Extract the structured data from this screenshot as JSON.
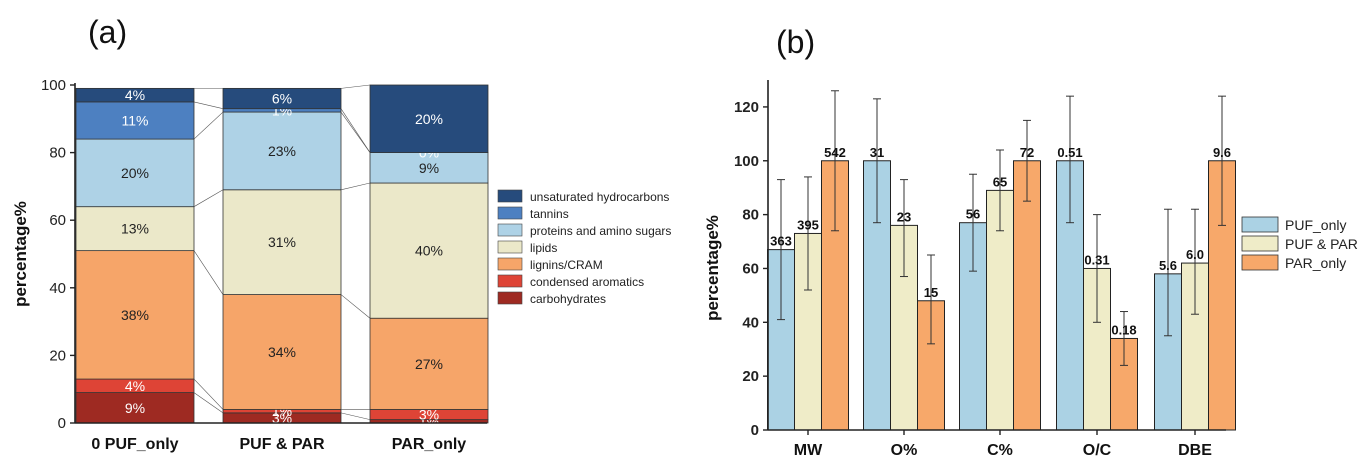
{
  "panel_a_label": "(a)",
  "panel_b_label": "(b)",
  "chart_data": [
    {
      "type": "bar",
      "stacked": true,
      "ylabel": "percentage%",
      "ylim": [
        0,
        100
      ],
      "yticks": [
        "0",
        "20",
        "40",
        "60",
        "80",
        "100"
      ],
      "categories": [
        "0 PUF_only",
        "PUF & PAR",
        "PAR_only"
      ],
      "series": [
        {
          "name": "carbohydrates",
          "color": "#9e2a22",
          "values": [
            9,
            3,
            1
          ],
          "labels": [
            "9%",
            "3%",
            "1%"
          ]
        },
        {
          "name": "condensed aromatics",
          "color": "#de4436",
          "values": [
            4,
            1,
            3
          ],
          "labels": [
            "4%",
            "1%",
            "3%"
          ]
        },
        {
          "name": "lignins/CRAM",
          "color": "#f6a569",
          "values": [
            38,
            34,
            27
          ],
          "labels": [
            "38%",
            "34%",
            "27%"
          ]
        },
        {
          "name": "lipids",
          "color": "#ebe8c9",
          "values": [
            13,
            31,
            40
          ],
          "labels": [
            "13%",
            "31%",
            "40%"
          ]
        },
        {
          "name": "proteins and amino sugars",
          "color": "#aed2e6",
          "values": [
            20,
            23,
            9
          ],
          "labels": [
            "20%",
            "23%",
            "9%"
          ]
        },
        {
          "name": "tannins",
          "color": "#4d80c1",
          "values": [
            11,
            1,
            0
          ],
          "labels": [
            "11%",
            "1%",
            "0%"
          ]
        },
        {
          "name": "unsaturated hydrocarbons",
          "color": "#264b7c",
          "values": [
            4,
            6,
            20
          ],
          "labels": [
            "4%",
            "6%",
            "20%"
          ]
        }
      ],
      "legend_order": [
        "unsaturated hydrocarbons",
        "tannins",
        "proteins and amino sugars",
        "lipids",
        "lignins/CRAM",
        "condensed aromatics",
        "carbohydrates"
      ]
    },
    {
      "type": "bar",
      "grouped": true,
      "ylabel": "percentage%",
      "ylim": [
        0,
        130
      ],
      "yticks": [
        "0",
        "20",
        "40",
        "60",
        "80",
        "100",
        "120"
      ],
      "categories": [
        "MW",
        "O%",
        "C%",
        "O/C",
        "DBE"
      ],
      "series": [
        {
          "name": "PUF_only",
          "color": "#abd2e4",
          "values": [
            67,
            100,
            77,
            100,
            58
          ],
          "err_low": [
            41,
            77,
            59,
            77,
            35
          ],
          "err_high": [
            93,
            123,
            95,
            124,
            82
          ],
          "labels": [
            "363",
            "31",
            "56",
            "0.51",
            "5.6"
          ]
        },
        {
          "name": "PUF & PAR",
          "color": "#efecc8",
          "values": [
            73,
            76,
            89,
            60,
            62
          ],
          "err_low": [
            52,
            57,
            74,
            40,
            43
          ],
          "err_high": [
            94,
            93,
            104,
            80,
            82
          ],
          "labels": [
            "395",
            "23",
            "65",
            "0.31",
            "6.0"
          ]
        },
        {
          "name": "PAR_only",
          "color": "#f7a86a",
          "values": [
            100,
            48,
            100,
            34,
            100
          ],
          "err_low": [
            74,
            32,
            85,
            24,
            76
          ],
          "err_high": [
            126,
            65,
            115,
            44,
            124
          ],
          "labels": [
            "542",
            "15",
            "72",
            "0.18",
            "9.6"
          ]
        }
      ]
    }
  ]
}
